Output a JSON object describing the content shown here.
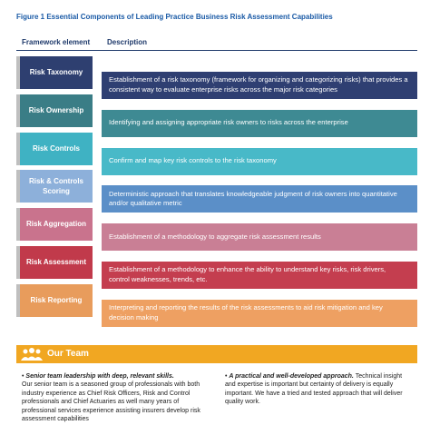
{
  "figure_title": "Figure 1 Essential Components of Leading Practice Business Risk Assessment Capabilities",
  "headers": [
    "Framework element",
    "Description"
  ],
  "rows": [
    {
      "element": "Risk Taxonomy",
      "description": "Establishment of a risk taxonomy (framework for organizing and categorizing risks) that provides a consistent way to evaluate enterprise risks across the major risk categories"
    },
    {
      "element": "Risk Ownership",
      "description": "Identifying and assigning appropriate risk owners to risks across the enterprise"
    },
    {
      "element": "Risk Controls",
      "description": "Confirm and map key risk controls to the risk taxonomy"
    },
    {
      "element": "Risk & Controls Scoring",
      "description": "Deterministic approach that translates knowledgeable judgment of risk owners into quantitative and/or qualitative metric"
    },
    {
      "element": "Risk Aggregation",
      "description": "Establishment of a methodology to aggregate risk assessment results"
    },
    {
      "element": "Risk Assessment",
      "description": "Establishment of a methodology to enhance the ability to understand key risks, risk drivers, control weaknesses, trends, etc."
    },
    {
      "element": "Risk Reporting",
      "description": "Interpreting and reporting the results of the risk assessments to aid risk mitigation and key decision making"
    }
  ],
  "team": {
    "title": "Our Team",
    "left": {
      "lead": "Senior team leadership with deep, relevant skills.",
      "body": "Our senior team is a seasoned group of professionals with both industry experience as Chief Risk Officers, Risk and Control professionals and Chief Actuaries as well many years of professional services experience assisting insurers develop risk assessment capabilities"
    },
    "right": {
      "lead": "A practical and well-developed approach.",
      "body": "Technical insight and expertise is important but certainty of delivery is equally important. We have a tried and tested approach that will deliver quality work."
    }
  }
}
